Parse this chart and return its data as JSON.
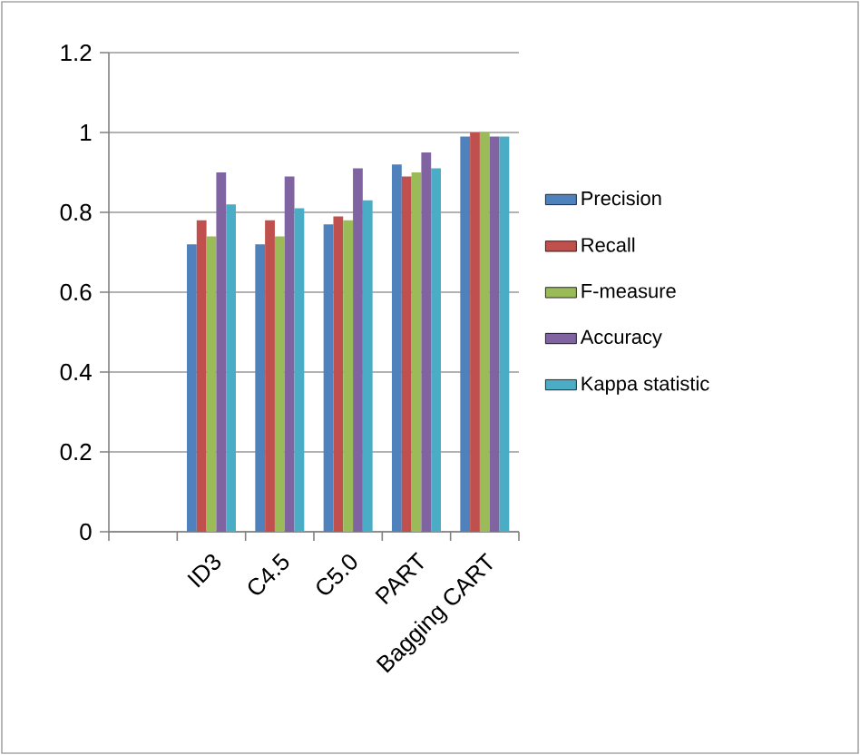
{
  "chart_data": {
    "type": "bar",
    "categories": [
      null,
      "ID3",
      "C4.5",
      "C5.0",
      "PART",
      "Bagging CART"
    ],
    "series": [
      {
        "name": "Precision",
        "color": "#4f81bd",
        "values": [
          null,
          0.72,
          0.72,
          0.77,
          0.92,
          0.99
        ]
      },
      {
        "name": "Recall",
        "color": "#c0504d",
        "values": [
          null,
          0.78,
          0.78,
          0.79,
          0.89,
          1.0
        ]
      },
      {
        "name": "F-measure",
        "color": "#9bbb59",
        "values": [
          null,
          0.74,
          0.74,
          0.78,
          0.9,
          1.0
        ]
      },
      {
        "name": "Accuracy",
        "color": "#8064a2",
        "values": [
          null,
          0.9,
          0.89,
          0.91,
          0.95,
          0.99
        ]
      },
      {
        "name": "Kappa statistic",
        "color": "#4bacc6",
        "values": [
          null,
          0.82,
          0.81,
          0.83,
          0.91,
          0.99
        ]
      }
    ],
    "ylim": [
      0,
      1.2
    ],
    "yticks": [
      0,
      0.2,
      0.4,
      0.6,
      0.8,
      1,
      1.2
    ],
    "grid": "y",
    "legend": "right"
  }
}
